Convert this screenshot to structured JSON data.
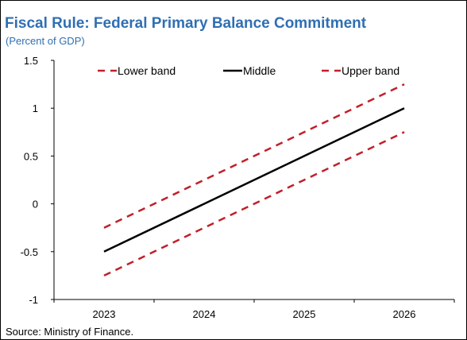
{
  "chart_data": {
    "type": "line",
    "title": "Fiscal Rule: Federal Primary Balance Commitment",
    "subtitle": "(Percent of GDP)",
    "source": "Source: Ministry of Finance.",
    "x": [
      "2023",
      "2024",
      "2025",
      "2026"
    ],
    "ylim": [
      -1,
      1.5
    ],
    "yticks": [
      "-1",
      "-0.5",
      "0",
      "0.5",
      "1",
      "1.5"
    ],
    "grid": false,
    "legend_position": "top",
    "series": [
      {
        "name": "Lower band",
        "values": [
          -0.75,
          -0.25,
          0.25,
          0.75
        ],
        "color": "#c0202a",
        "dash": true
      },
      {
        "name": "Middle",
        "values": [
          -0.5,
          0.0,
          0.5,
          1.0
        ],
        "color": "#000000",
        "dash": false
      },
      {
        "name": "Upper band",
        "values": [
          -0.25,
          0.25,
          0.75,
          1.25
        ],
        "color": "#c0202a",
        "dash": true
      }
    ],
    "legend_order": [
      0,
      1,
      2
    ],
    "colors": {
      "title": "#2f6fb3",
      "axis": "#000000"
    }
  }
}
